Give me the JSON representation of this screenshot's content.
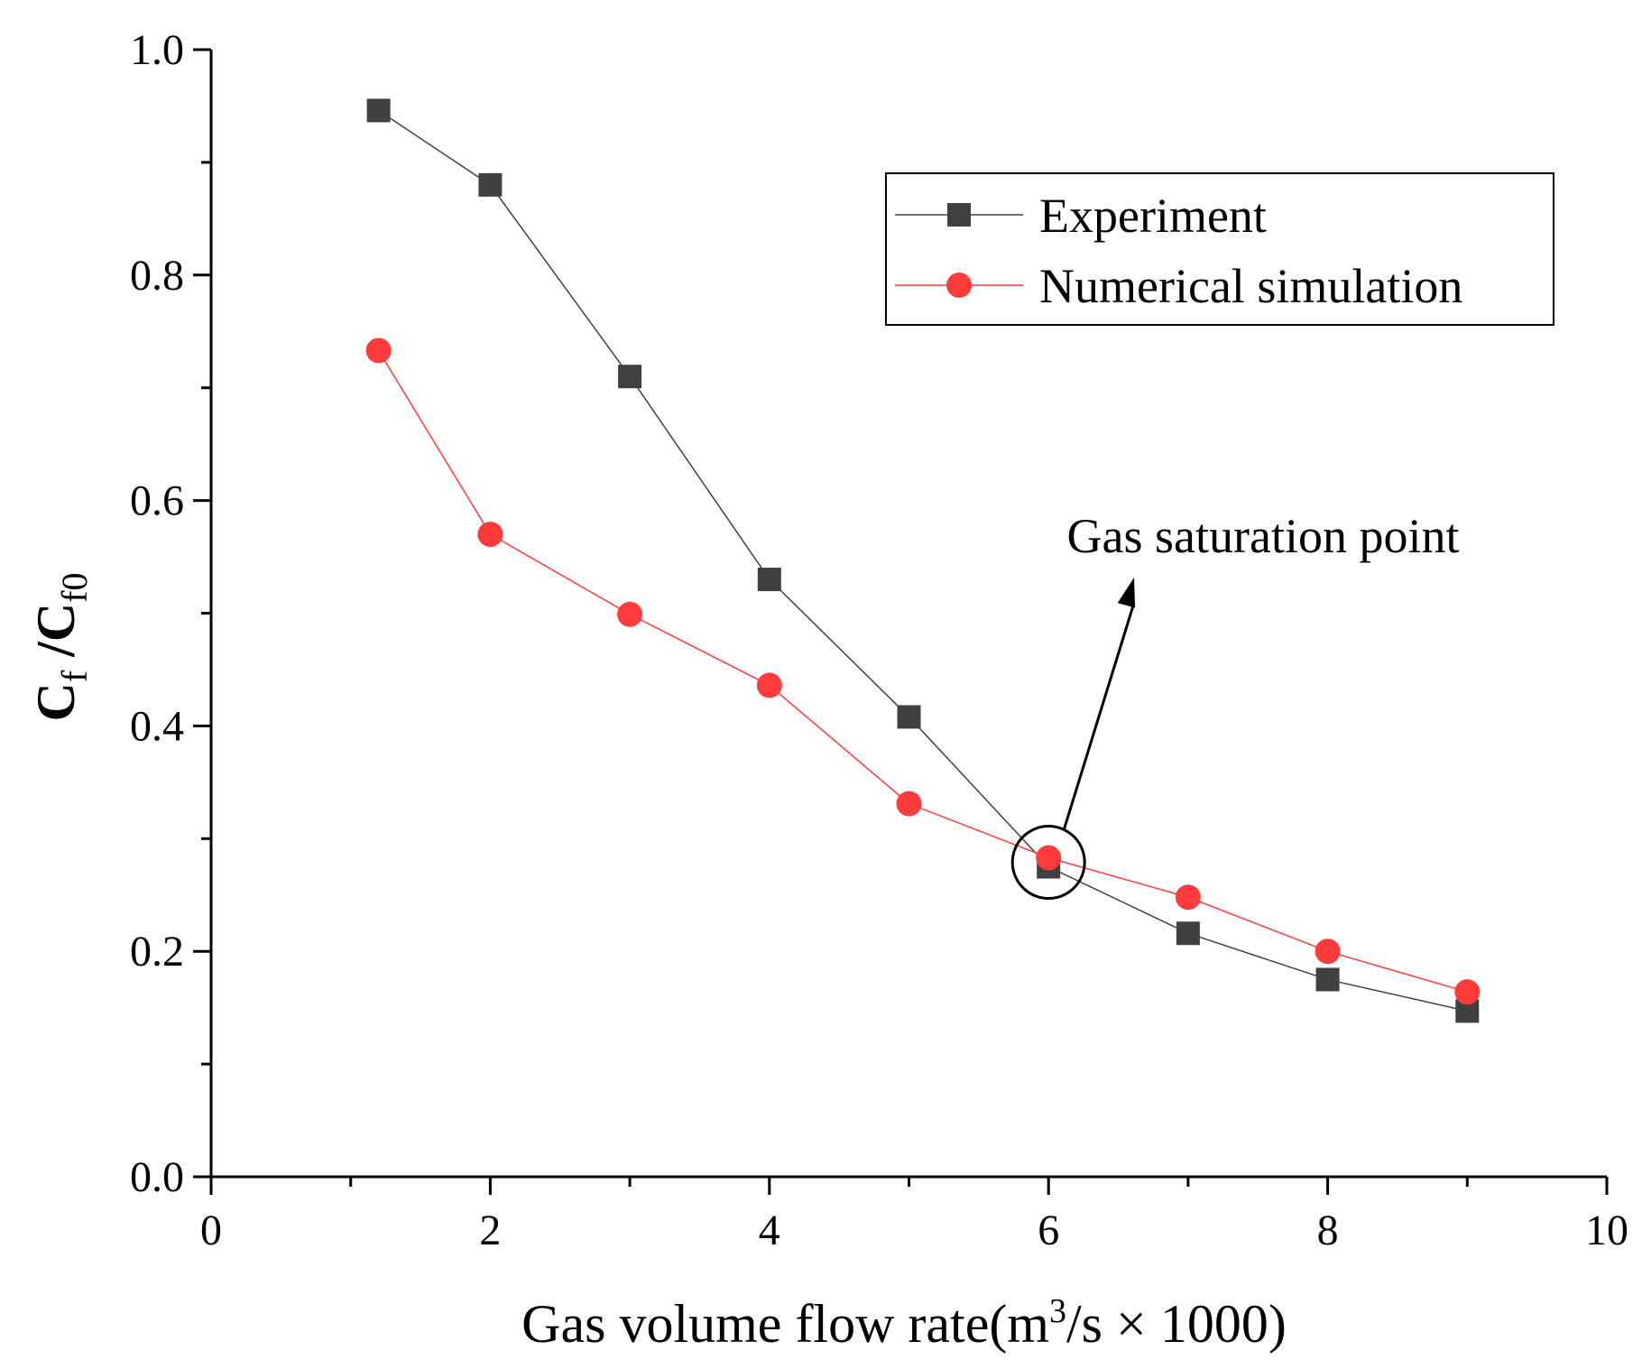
{
  "chart_data": {
    "type": "line",
    "x": [
      1.2,
      2,
      3,
      4,
      5,
      6,
      7,
      8,
      9
    ],
    "series": [
      {
        "name": "Experiment",
        "color": "#404040",
        "marker": "square",
        "values": [
          0.946,
          0.88,
          0.71,
          0.53,
          0.408,
          0.275,
          0.216,
          0.175,
          0.147
        ]
      },
      {
        "name": "Numerical simulation",
        "color": "#ff3b3b",
        "marker": "circle",
        "values": [
          0.733,
          0.57,
          0.499,
          0.436,
          0.331,
          0.283,
          0.248,
          0.2,
          0.164
        ]
      }
    ],
    "xlim": [
      0,
      10
    ],
    "ylim": [
      0.0,
      1.0
    ],
    "xticks": [
      "0",
      "2",
      "4",
      "6",
      "8",
      "10"
    ],
    "yticks": [
      "0.0",
      "0.2",
      "0.4",
      "0.6",
      "0.8",
      "1.0"
    ],
    "xlabel": {
      "prefix": "Gas volume flow rate(m",
      "sup": "3",
      "suffix": "/s × 1000)"
    },
    "ylabel": {
      "main1": "C",
      "sub1": "f",
      "mid": " /C",
      "sub2": "f0"
    },
    "annotation": {
      "text": "Gas saturation point",
      "target_x": 6,
      "target_y": 0.279
    },
    "legend_position": "top-right",
    "grid": false
  }
}
